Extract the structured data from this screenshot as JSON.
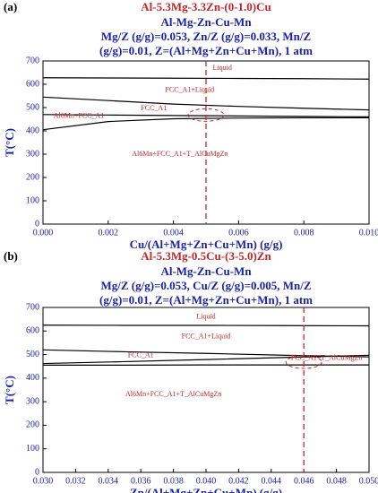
{
  "chart_data": [
    {
      "type": "line",
      "panel_label": "(a)",
      "title": "Al-5.3Mg-3.3Zn-(0-1.0)Cu",
      "subtitles": [
        "Al-Mg-Zn-Cu-Mn",
        "Mg/Z (g/g)=0.053, Zn/Z (g/g)=0.033, Mn/Z",
        "(g/g)=0.01, Z=(Al+Mg+Zn+Cu+Mn), 1 atm"
      ],
      "xlabel": "Cu/(Al+Mg+Zn+Cu+Mn) (g/g)",
      "ylabel": "T(°C)",
      "x": [
        0,
        0.002,
        0.004,
        0.006,
        0.008,
        0.01
      ],
      "series": [
        {
          "color": "#000000",
          "values": [
            628,
            627,
            626,
            625,
            624,
            622
          ]
        },
        {
          "color": "#000000",
          "values": [
            545,
            530,
            515,
            505,
            497,
            490
          ]
        },
        {
          "color": "#000000",
          "values": [
            470,
            468,
            466,
            464,
            462,
            460
          ]
        },
        {
          "color": "#000000",
          "values": [
            405,
            440,
            452,
            455,
            456,
            456
          ]
        }
      ],
      "vline": 0.005,
      "annotations": [
        "Liquid",
        "FCC_A1+Liquid",
        "FCC_A1",
        "Al6Mn+FCC_A1",
        "Al6Mn+FCC_A1+T_AlCuMgZn"
      ],
      "xlim": [
        0,
        0.01
      ],
      "ylim": [
        0,
        700
      ],
      "xticks": [
        {
          "value": 0,
          "label": "0.000"
        },
        {
          "value": 0.002,
          "label": "0.002"
        },
        {
          "value": 0.004,
          "label": "0.004"
        },
        {
          "value": 0.006,
          "label": "0.006"
        },
        {
          "value": 0.008,
          "label": "0.008"
        },
        {
          "value": 0.01,
          "label": "0.010"
        }
      ],
      "yticks": [
        0,
        100,
        200,
        300,
        400,
        500,
        600,
        700
      ]
    },
    {
      "type": "line",
      "panel_label": "(b)",
      "title": "Al-5.3Mg-0.5Cu-(3-5.0)Zn",
      "subtitles": [
        "Al-Mg-Zn-Cu-Mn",
        "Mg/Z (g/g)=0.053, Cu/Z (g/g)=0.005, Mn/Z",
        "(g/g)=0.01, Z=(Al+Mg+Zn+Cu+Mn), 1 atm"
      ],
      "xlabel": "Zn/(Al+Mg+Zn+Cu+Mn) (g/g)",
      "ylabel": "T(°C)",
      "x": [
        0.03,
        0.035,
        0.04,
        0.045,
        0.05
      ],
      "series": [
        {
          "color": "#000000",
          "values": [
            625,
            624,
            624,
            623,
            622
          ]
        },
        {
          "color": "#000000",
          "values": [
            520,
            512,
            505,
            497,
            490
          ]
        },
        {
          "color": "#000000",
          "values": [
            462,
            470,
            479,
            488,
            497
          ]
        },
        {
          "color": "#000000",
          "values": [
            455,
            455,
            456,
            456,
            456
          ]
        }
      ],
      "vline": 0.046,
      "annotations": [
        "Liquid",
        "FCC_A1+Liquid",
        "FCC_A1",
        "FCC_A1+T_AlCuMgZn",
        "Al6Mn+FCC_A1+T_AlCuMgZn"
      ],
      "xlim": [
        0.03,
        0.05
      ],
      "ylim": [
        0,
        700
      ],
      "xticks": [
        {
          "value": 0.03,
          "label": "0.030"
        },
        {
          "value": 0.032,
          "label": "0.032"
        },
        {
          "value": 0.034,
          "label": "0.034"
        },
        {
          "value": 0.036,
          "label": "0.036"
        },
        {
          "value": 0.038,
          "label": "0.038"
        },
        {
          "value": 0.04,
          "label": "0.040"
        },
        {
          "value": 0.042,
          "label": "0.042"
        },
        {
          "value": 0.044,
          "label": "0.044"
        },
        {
          "value": 0.046,
          "label": "0.046"
        },
        {
          "value": 0.048,
          "label": "0.048"
        },
        {
          "value": 0.05,
          "label": "0.050"
        }
      ],
      "yticks": [
        0,
        100,
        200,
        300,
        400,
        500,
        600,
        700
      ]
    }
  ]
}
